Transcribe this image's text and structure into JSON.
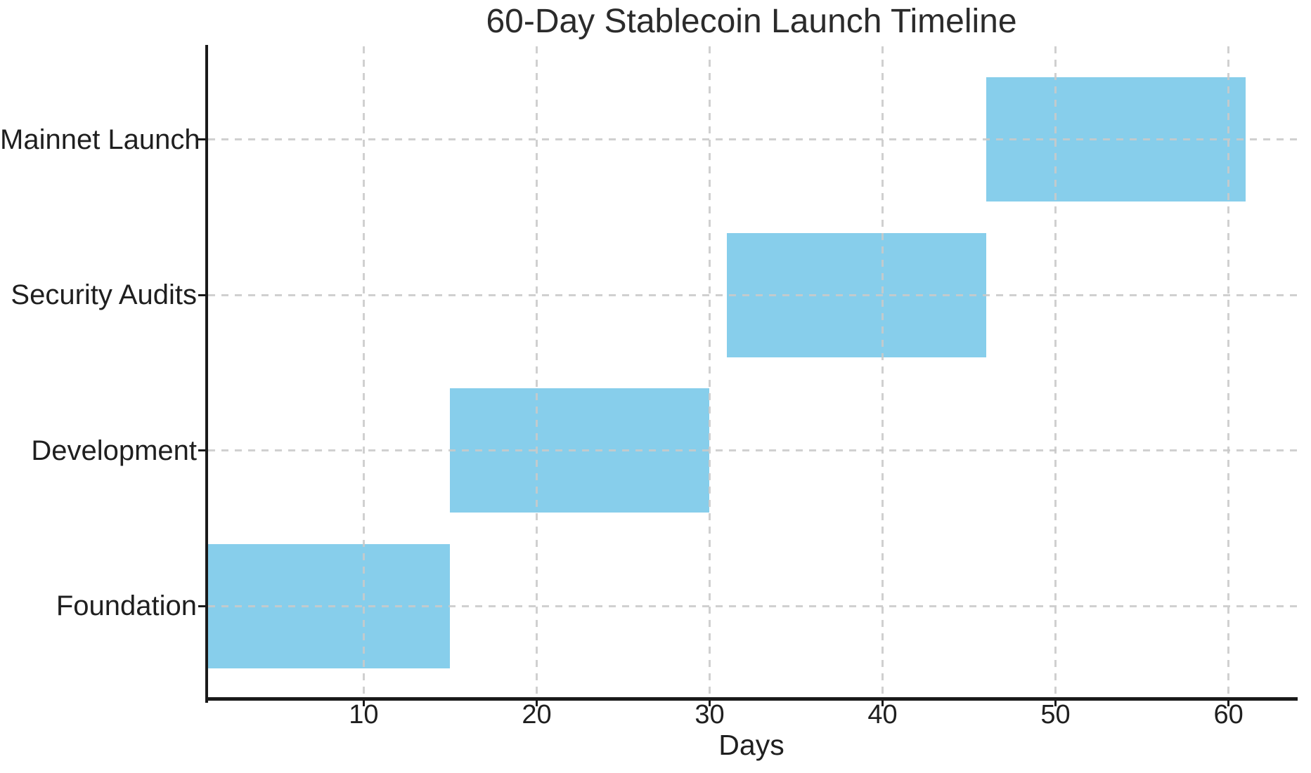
{
  "page": {
    "background_color": "#ffffff"
  },
  "chart_data": {
    "type": "bar",
    "subtype": "gantt",
    "orientation": "horizontal",
    "title": "60-Day Stablecoin Launch Timeline",
    "xlabel": "Days",
    "ylabel": "",
    "categories": [
      "Foundation",
      "Development",
      "Security Audits",
      "Mainnet Launch"
    ],
    "bars": [
      {
        "task": "Foundation",
        "start": 1,
        "end": 15
      },
      {
        "task": "Development",
        "start": 15,
        "end": 30
      },
      {
        "task": "Security Audits",
        "start": 31,
        "end": 46
      },
      {
        "task": "Mainnet Launch",
        "start": 46,
        "end": 61
      }
    ],
    "xticks": [
      10,
      20,
      30,
      40,
      50,
      60
    ],
    "xlim": [
      1,
      64
    ],
    "ylim": [
      -0.6,
      3.6
    ],
    "bar_height": 0.8,
    "bar_color": "#87CEEB",
    "grid": true,
    "grid_linestyle": "dashed",
    "grid_color": "#c9c9c9",
    "grid_above_bars": true,
    "axis_color": "#1a1a1a",
    "spines": [
      "left",
      "bottom"
    ],
    "legend": "none"
  }
}
